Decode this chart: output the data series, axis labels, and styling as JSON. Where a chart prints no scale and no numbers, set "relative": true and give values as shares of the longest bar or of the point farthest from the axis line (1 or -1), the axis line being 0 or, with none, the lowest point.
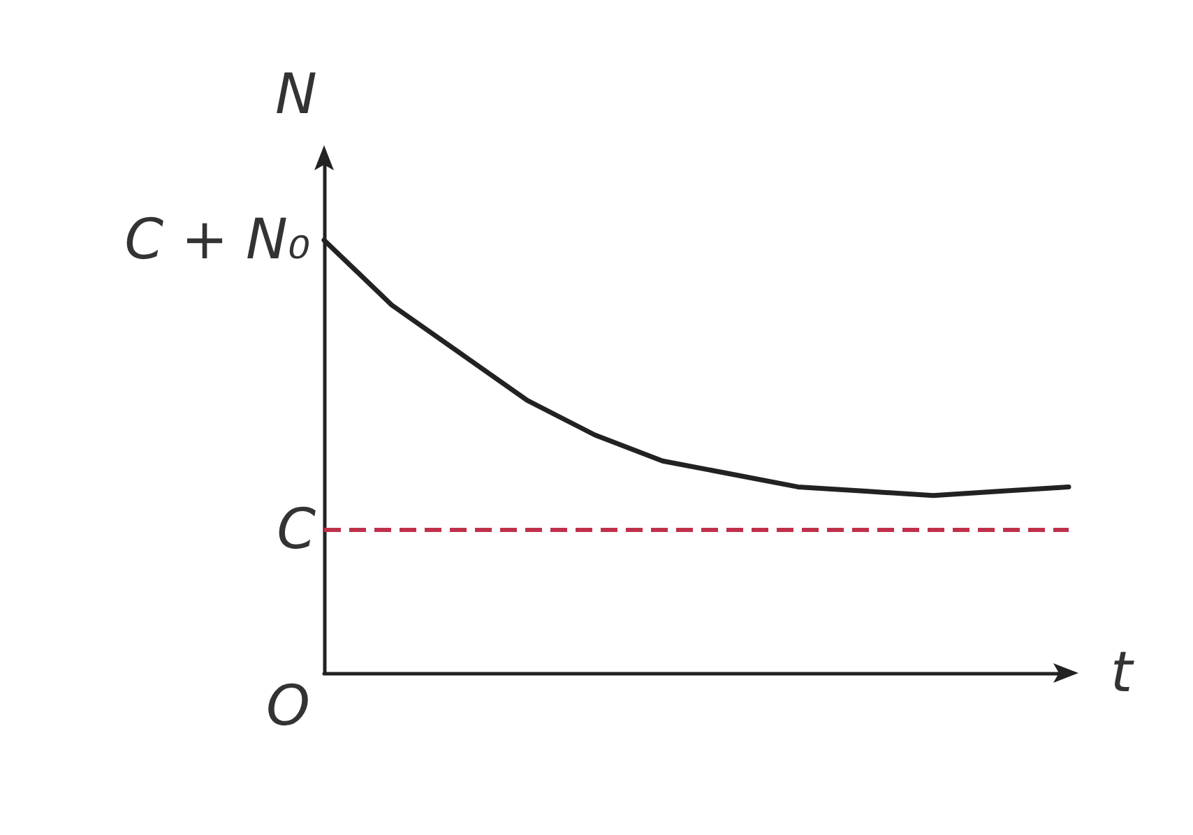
{
  "chart_data": {
    "type": "line",
    "xlabel": "t",
    "ylabel": "N",
    "relative": true,
    "categories": [
      null,
      null,
      null,
      null,
      null,
      null,
      null,
      null,
      null,
      null,
      null,
      null
    ],
    "series": [
      {
        "color": "#222222",
        "values": [
          1.0,
          0.85,
          0.74,
          0.63,
          0.55,
          0.49,
          0.46,
          0.43,
          0.42,
          0.41,
          0.42,
          0.43
        ]
      }
    ],
    "marker": "none",
    "line_style": "solid",
    "ref_lines": [
      {
        "axis": "y",
        "value": 0.33,
        "label": "C",
        "color": "#c0304a",
        "line_style": "dashed"
      }
    ],
    "annotations": [
      "C + N₀",
      "O"
    ]
  }
}
